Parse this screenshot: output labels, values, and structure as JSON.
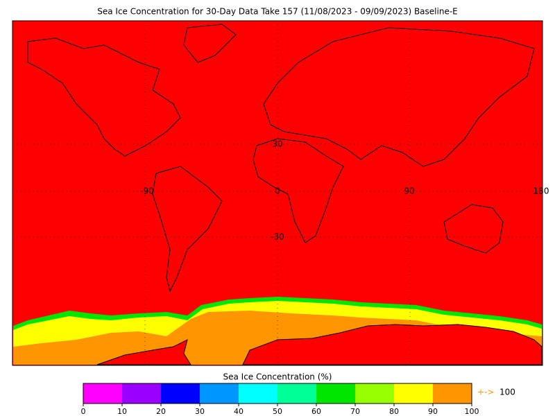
{
  "header": {
    "title": "Sea Ice Concentration for 30-Day Data Take 157 (11/08/2023 - 09/09/2023) Baseline-E"
  },
  "map": {
    "grid_labels": [
      "30",
      "-90",
      "0",
      "90",
      "180",
      "-30"
    ]
  },
  "legend": {
    "title": "Sea Ice Concentration (%)",
    "ticks": [
      0,
      10,
      20,
      30,
      40,
      50,
      60,
      70,
      80,
      90,
      100
    ],
    "colors": [
      "#ff00ff",
      "#9a00ff",
      "#0000ff",
      "#0096ff",
      "#00ffff",
      "#00ff96",
      "#00e600",
      "#96ff00",
      "#ffff00",
      "#ff9600"
    ],
    "overflow_marker": "+->",
    "overflow_label": "100"
  }
}
